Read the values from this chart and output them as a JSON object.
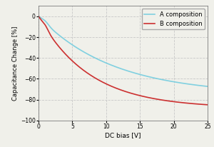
{
  "title": "",
  "xlabel": "DC bias [V]",
  "ylabel": "Capacitance Change [%]",
  "xlim": [
    0,
    25
  ],
  "ylim": [
    -100,
    10
  ],
  "yticks": [
    0,
    -20,
    -40,
    -60,
    -80,
    -100
  ],
  "xticks": [
    0,
    5,
    10,
    15,
    20,
    25
  ],
  "grid_color": "#c8c8c8",
  "bg_color": "#f0f0ea",
  "legend": [
    "A composition",
    "B composition"
  ],
  "color_A": "#80d0e0",
  "color_B": "#cc3030",
  "line_width": 1.2,
  "figwidth": 3.0,
  "figheight": 2.06,
  "dpi": 100
}
